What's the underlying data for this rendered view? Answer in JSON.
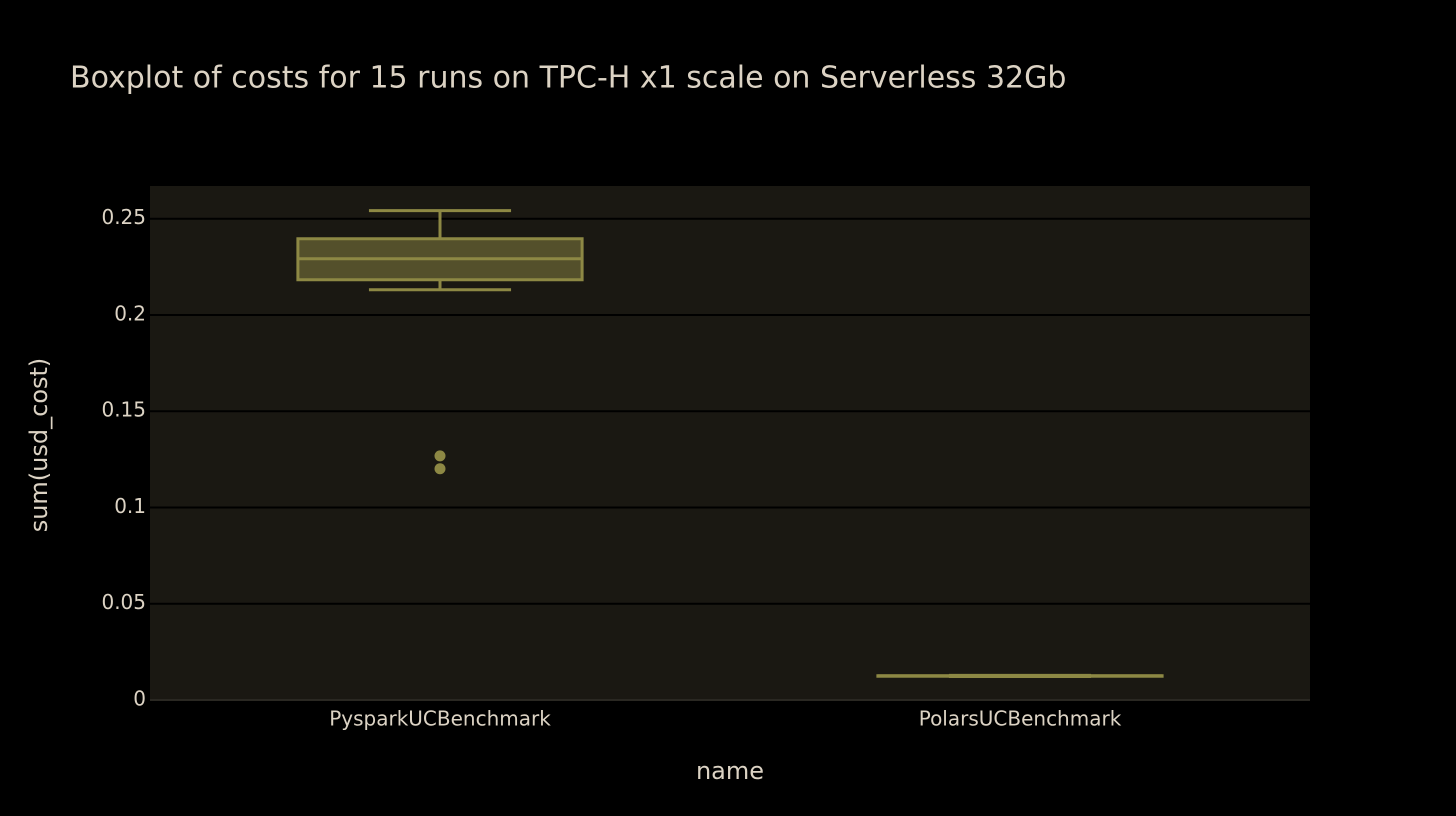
{
  "chart_data": {
    "type": "box",
    "title": "Boxplot of costs for 15 runs on TPC-H x1 scale on Serverless 32Gb",
    "x_label": "name",
    "y_label": "sum(usd_cost)",
    "categories": [
      "PysparkUCBenchmark",
      "PolarsUCBenchmark"
    ],
    "boxes": [
      {
        "min": 0.2131,
        "q1": 0.2183,
        "median": 0.2292,
        "q3": 0.2396,
        "max": 0.2542,
        "outliers": [
          0.1268,
          0.1201
        ]
      },
      {
        "min": 0.0122,
        "q1": 0.0124,
        "median": 0.0125,
        "q3": 0.0126,
        "max": 0.0128,
        "outliers": []
      }
    ],
    "color": "#8d8844",
    "ylim": [
      0,
      0.267
    ],
    "yticks": [
      0,
      0.05,
      0.1,
      0.15,
      0.2,
      0.25
    ],
    "grid": true
  }
}
